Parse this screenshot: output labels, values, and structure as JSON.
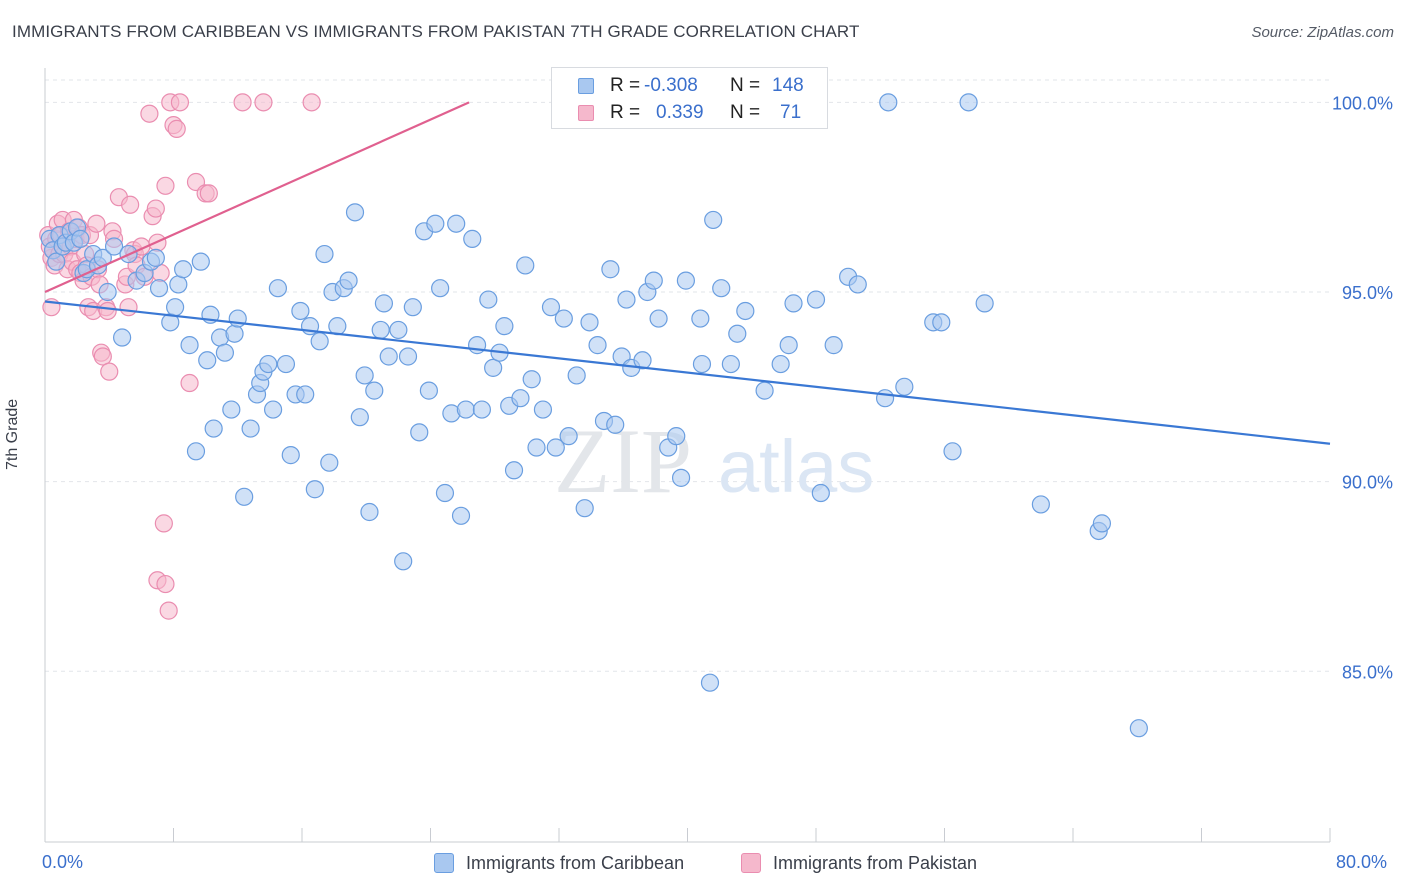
{
  "title": "IMMIGRANTS FROM CARIBBEAN VS IMMIGRANTS FROM PAKISTAN 7TH GRADE CORRELATION CHART",
  "source": "Source: ZipAtlas.com",
  "watermark": {
    "zip": "ZIP",
    "atlas": "atlas"
  },
  "legend": {
    "r_label": "R =",
    "n_label": "N =",
    "rows": [
      {
        "r": "-0.308",
        "n": "148"
      },
      {
        "r": "0.339",
        "n": "71"
      }
    ]
  },
  "colors": {
    "caribbean_fill": "#a9c8f0",
    "caribbean_stroke": "#6a9ee0",
    "caribbean_line": "#3a78d4",
    "pakistan_fill": "#f5b8cc",
    "pakistan_stroke": "#ea8db0",
    "pakistan_line": "#e0608f",
    "tick_text": "#3a6fcc",
    "grid": "#e2e5ea"
  },
  "chart_data": {
    "type": "scatter",
    "title": "IMMIGRANTS FROM CARIBBEAN VS IMMIGRANTS FROM PAKISTAN 7TH GRADE CORRELATION CHART",
    "xlabel": "",
    "ylabel": "7th Grade",
    "xlim": [
      0,
      80
    ],
    "ylim": [
      80.5,
      100.8
    ],
    "x_tick_labels": [
      "0.0%",
      "80.0%"
    ],
    "y_ticks": [
      85,
      90,
      95,
      100
    ],
    "y_tick_labels": [
      "85.0%",
      "90.0%",
      "95.0%",
      "100.0%"
    ],
    "grid": true,
    "legend_position": "top-center",
    "series": [
      {
        "name": "Immigrants from Caribbean",
        "r": -0.308,
        "n": 148,
        "trend": {
          "x": [
            0,
            80
          ],
          "y": [
            94.75,
            91.0
          ]
        },
        "points": [
          [
            0.3,
            96.4
          ],
          [
            0.5,
            96.1
          ],
          [
            0.7,
            95.8
          ],
          [
            0.9,
            96.5
          ],
          [
            1.1,
            96.2
          ],
          [
            1.3,
            96.3
          ],
          [
            1.6,
            96.6
          ],
          [
            1.8,
            96.3
          ],
          [
            2.0,
            96.7
          ],
          [
            2.2,
            96.4
          ],
          [
            2.4,
            95.5
          ],
          [
            2.6,
            95.6
          ],
          [
            3.0,
            96.0
          ],
          [
            3.3,
            95.7
          ],
          [
            3.6,
            95.9
          ],
          [
            3.9,
            95.0
          ],
          [
            4.3,
            96.2
          ],
          [
            4.8,
            93.8
          ],
          [
            5.2,
            96.0
          ],
          [
            5.7,
            95.3
          ],
          [
            6.2,
            95.5
          ],
          [
            6.6,
            95.8
          ],
          [
            6.9,
            95.9
          ],
          [
            7.1,
            95.1
          ],
          [
            7.8,
            94.2
          ],
          [
            8.1,
            94.6
          ],
          [
            8.3,
            95.2
          ],
          [
            8.6,
            95.6
          ],
          [
            9.0,
            93.6
          ],
          [
            9.4,
            90.8
          ],
          [
            9.7,
            95.8
          ],
          [
            10.1,
            93.2
          ],
          [
            10.3,
            94.4
          ],
          [
            10.5,
            91.4
          ],
          [
            10.9,
            93.8
          ],
          [
            11.2,
            93.4
          ],
          [
            11.6,
            91.9
          ],
          [
            11.8,
            93.9
          ],
          [
            12.0,
            94.3
          ],
          [
            12.4,
            89.6
          ],
          [
            12.8,
            91.4
          ],
          [
            13.2,
            92.3
          ],
          [
            13.4,
            92.6
          ],
          [
            13.6,
            92.9
          ],
          [
            13.9,
            93.1
          ],
          [
            14.2,
            91.9
          ],
          [
            14.5,
            95.1
          ],
          [
            15.0,
            93.1
          ],
          [
            15.3,
            90.7
          ],
          [
            15.6,
            92.3
          ],
          [
            15.9,
            94.5
          ],
          [
            16.2,
            92.3
          ],
          [
            16.5,
            94.1
          ],
          [
            16.8,
            89.8
          ],
          [
            17.1,
            93.7
          ],
          [
            17.4,
            96.0
          ],
          [
            17.7,
            90.5
          ],
          [
            17.9,
            95.0
          ],
          [
            18.2,
            94.1
          ],
          [
            18.6,
            95.1
          ],
          [
            18.9,
            95.3
          ],
          [
            19.3,
            97.1
          ],
          [
            19.6,
            91.7
          ],
          [
            19.9,
            92.8
          ],
          [
            20.2,
            89.2
          ],
          [
            20.5,
            92.4
          ],
          [
            20.9,
            94.0
          ],
          [
            21.1,
            94.7
          ],
          [
            21.4,
            93.3
          ],
          [
            22.0,
            94.0
          ],
          [
            22.3,
            87.9
          ],
          [
            22.6,
            93.3
          ],
          [
            22.9,
            94.6
          ],
          [
            23.3,
            91.3
          ],
          [
            23.6,
            96.6
          ],
          [
            23.9,
            92.4
          ],
          [
            24.3,
            96.8
          ],
          [
            24.6,
            95.1
          ],
          [
            24.9,
            89.7
          ],
          [
            25.3,
            91.8
          ],
          [
            25.6,
            96.8
          ],
          [
            25.9,
            89.1
          ],
          [
            26.2,
            91.9
          ],
          [
            26.6,
            96.4
          ],
          [
            26.9,
            93.6
          ],
          [
            27.2,
            91.9
          ],
          [
            27.6,
            94.8
          ],
          [
            27.9,
            93.0
          ],
          [
            28.3,
            93.4
          ],
          [
            28.6,
            94.1
          ],
          [
            28.9,
            92.0
          ],
          [
            29.2,
            90.3
          ],
          [
            29.6,
            92.2
          ],
          [
            29.9,
            95.7
          ],
          [
            30.3,
            92.7
          ],
          [
            30.6,
            90.9
          ],
          [
            31.0,
            91.9
          ],
          [
            31.5,
            94.6
          ],
          [
            31.8,
            90.9
          ],
          [
            32.3,
            94.3
          ],
          [
            32.6,
            91.2
          ],
          [
            33.1,
            92.8
          ],
          [
            33.6,
            89.3
          ],
          [
            33.9,
            94.2
          ],
          [
            34.4,
            93.6
          ],
          [
            34.8,
            91.6
          ],
          [
            35.2,
            95.6
          ],
          [
            35.5,
            91.5
          ],
          [
            35.9,
            93.3
          ],
          [
            36.2,
            94.8
          ],
          [
            36.5,
            93.0
          ],
          [
            37.2,
            93.2
          ],
          [
            37.5,
            95.0
          ],
          [
            37.9,
            95.3
          ],
          [
            38.2,
            94.3
          ],
          [
            38.8,
            90.9
          ],
          [
            39.3,
            91.2
          ],
          [
            39.6,
            90.1
          ],
          [
            39.9,
            95.3
          ],
          [
            40.8,
            94.3
          ],
          [
            40.9,
            93.1
          ],
          [
            41.6,
            96.9
          ],
          [
            42.1,
            95.1
          ],
          [
            42.7,
            93.1
          ],
          [
            43.1,
            93.9
          ],
          [
            43.6,
            94.5
          ],
          [
            44.8,
            92.4
          ],
          [
            45.8,
            93.1
          ],
          [
            46.3,
            93.6
          ],
          [
            46.6,
            94.7
          ],
          [
            48.0,
            94.8
          ],
          [
            48.3,
            89.7
          ],
          [
            49.1,
            93.6
          ],
          [
            50.0,
            95.4
          ],
          [
            50.6,
            95.2
          ],
          [
            52.3,
            92.2
          ],
          [
            53.5,
            92.5
          ],
          [
            55.3,
            94.2
          ],
          [
            55.8,
            94.2
          ],
          [
            56.5,
            90.8
          ],
          [
            58.5,
            94.7
          ],
          [
            62.0,
            89.4
          ],
          [
            65.6,
            88.7
          ],
          [
            65.8,
            88.9
          ],
          [
            68.1,
            83.5
          ],
          [
            41.4,
            84.7
          ],
          [
            52.5,
            100.0
          ],
          [
            57.5,
            100.0
          ]
        ]
      },
      {
        "name": "Immigrants from Pakistan",
        "r": 0.339,
        "n": 71,
        "trend": {
          "x": [
            0,
            26.4
          ],
          "y": [
            95.0,
            100.0
          ]
        },
        "points": [
          [
            0.2,
            96.5
          ],
          [
            0.3,
            96.2
          ],
          [
            0.4,
            95.9
          ],
          [
            0.5,
            96.1
          ],
          [
            0.6,
            95.7
          ],
          [
            0.7,
            96.4
          ],
          [
            0.8,
            96.8
          ],
          [
            0.9,
            96.0
          ],
          [
            1.0,
            96.5
          ],
          [
            1.1,
            96.9
          ],
          [
            1.2,
            96.0
          ],
          [
            1.3,
            96.3
          ],
          [
            1.4,
            95.6
          ],
          [
            1.5,
            96.6
          ],
          [
            1.6,
            96.2
          ],
          [
            1.7,
            95.8
          ],
          [
            1.8,
            96.9
          ],
          [
            1.9,
            96.4
          ],
          [
            2.0,
            95.6
          ],
          [
            2.1,
            96.7
          ],
          [
            2.2,
            95.5
          ],
          [
            2.3,
            96.5
          ],
          [
            2.4,
            95.3
          ],
          [
            2.5,
            96.0
          ],
          [
            2.6,
            95.7
          ],
          [
            2.7,
            94.6
          ],
          [
            2.8,
            96.5
          ],
          [
            2.9,
            95.4
          ],
          [
            3.0,
            94.5
          ],
          [
            3.2,
            96.8
          ],
          [
            3.3,
            95.6
          ],
          [
            3.4,
            95.2
          ],
          [
            3.5,
            93.4
          ],
          [
            3.6,
            93.3
          ],
          [
            3.8,
            94.6
          ],
          [
            3.9,
            94.5
          ],
          [
            4.0,
            92.9
          ],
          [
            4.2,
            96.6
          ],
          [
            4.3,
            96.4
          ],
          [
            4.6,
            97.5
          ],
          [
            5.0,
            95.2
          ],
          [
            5.1,
            95.4
          ],
          [
            5.2,
            94.6
          ],
          [
            5.3,
            97.3
          ],
          [
            5.5,
            96.1
          ],
          [
            5.6,
            96.0
          ],
          [
            5.7,
            95.7
          ],
          [
            6.0,
            96.2
          ],
          [
            6.2,
            95.4
          ],
          [
            6.5,
            99.7
          ],
          [
            6.7,
            97.0
          ],
          [
            6.9,
            97.2
          ],
          [
            7.0,
            96.3
          ],
          [
            7.2,
            95.5
          ],
          [
            7.5,
            97.8
          ],
          [
            7.8,
            100.0
          ],
          [
            8.0,
            99.4
          ],
          [
            8.2,
            99.3
          ],
          [
            8.4,
            100.0
          ],
          [
            9.0,
            92.6
          ],
          [
            9.4,
            97.9
          ],
          [
            10.0,
            97.6
          ],
          [
            10.2,
            97.6
          ],
          [
            12.3,
            100.0
          ],
          [
            13.6,
            100.0
          ],
          [
            16.6,
            100.0
          ],
          [
            7.0,
            87.4
          ],
          [
            7.5,
            87.3
          ],
          [
            7.7,
            86.6
          ],
          [
            7.4,
            88.9
          ],
          [
            0.4,
            94.6
          ]
        ]
      }
    ]
  }
}
